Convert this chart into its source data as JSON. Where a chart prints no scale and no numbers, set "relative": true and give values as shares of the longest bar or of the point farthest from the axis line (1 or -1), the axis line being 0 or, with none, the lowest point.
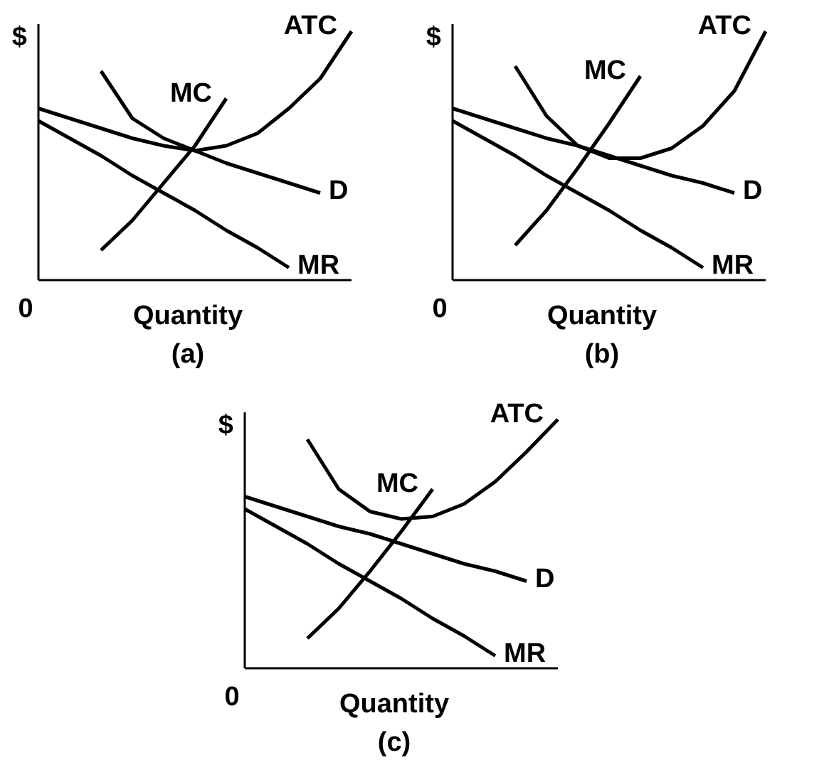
{
  "chart_data": [
    {
      "type": "line",
      "title": "(a)",
      "xlabel": "Quantity",
      "ylabel": "$",
      "annotations": [
        "0"
      ],
      "relative": true,
      "legend": false,
      "grid": false,
      "line_style": "solid",
      "marker": "none",
      "categories": [
        null,
        null,
        null,
        null,
        null,
        null,
        null,
        null,
        null,
        null,
        null
      ],
      "series": [
        {
          "name": "MC",
          "color": "#000000",
          "values": [
            null,
            null,
            0.12,
            0.24,
            0.39,
            0.54,
            0.73,
            null,
            null,
            null,
            null
          ]
        },
        {
          "name": "ATC",
          "color": "#000000",
          "values": [
            null,
            null,
            0.84,
            0.65,
            0.57,
            0.52,
            0.54,
            0.59,
            0.69,
            0.81,
            1.0
          ]
        },
        {
          "name": "D",
          "color": "#000000",
          "values": [
            0.69,
            0.65,
            0.61,
            0.57,
            0.54,
            0.52,
            0.47,
            0.43,
            0.39,
            0.35,
            null
          ]
        },
        {
          "name": "MR",
          "color": "#000000",
          "values": [
            0.64,
            0.57,
            0.5,
            0.42,
            0.35,
            0.28,
            0.2,
            0.13,
            0.05,
            null,
            null
          ]
        }
      ]
    },
    {
      "type": "line",
      "title": "(b)",
      "xlabel": "Quantity",
      "ylabel": "$",
      "annotations": [
        "0"
      ],
      "relative": true,
      "legend": false,
      "grid": false,
      "line_style": "solid",
      "marker": "none",
      "categories": [
        null,
        null,
        null,
        null,
        null,
        null,
        null,
        null,
        null,
        null,
        null
      ],
      "series": [
        {
          "name": "MC",
          "color": "#000000",
          "values": [
            null,
            null,
            0.14,
            0.28,
            0.45,
            0.63,
            0.82,
            null,
            null,
            null,
            null
          ]
        },
        {
          "name": "ATC",
          "color": "#000000",
          "values": [
            null,
            null,
            0.86,
            0.66,
            0.54,
            0.49,
            0.49,
            0.53,
            0.62,
            0.76,
            1.0
          ]
        },
        {
          "name": "D",
          "color": "#000000",
          "values": [
            0.69,
            0.65,
            0.61,
            0.57,
            0.54,
            0.5,
            0.46,
            0.42,
            0.39,
            0.35,
            null
          ]
        },
        {
          "name": "MR",
          "color": "#000000",
          "values": [
            0.64,
            0.57,
            0.5,
            0.42,
            0.35,
            0.28,
            0.2,
            0.13,
            0.05,
            null,
            null
          ]
        }
      ]
    },
    {
      "type": "line",
      "title": "(c)",
      "xlabel": "Quantity",
      "ylabel": "$",
      "annotations": [
        "0"
      ],
      "relative": true,
      "legend": false,
      "grid": false,
      "line_style": "solid",
      "marker": "none",
      "categories": [
        null,
        null,
        null,
        null,
        null,
        null,
        null,
        null,
        null,
        null,
        null
      ],
      "series": [
        {
          "name": "MC",
          "color": "#000000",
          "values": [
            null,
            null,
            0.12,
            0.24,
            0.39,
            0.55,
            0.72,
            null,
            null,
            null,
            null
          ]
        },
        {
          "name": "ATC",
          "color": "#000000",
          "values": [
            null,
            null,
            0.92,
            0.72,
            0.63,
            0.6,
            0.61,
            0.66,
            0.75,
            0.87,
            1.0
          ]
        },
        {
          "name": "D",
          "color": "#000000",
          "values": [
            0.69,
            0.65,
            0.61,
            0.57,
            0.54,
            0.5,
            0.46,
            0.42,
            0.39,
            0.35,
            null
          ]
        },
        {
          "name": "MR",
          "color": "#000000",
          "values": [
            0.64,
            0.57,
            0.5,
            0.42,
            0.35,
            0.28,
            0.2,
            0.13,
            0.05,
            null,
            null
          ]
        }
      ]
    }
  ]
}
